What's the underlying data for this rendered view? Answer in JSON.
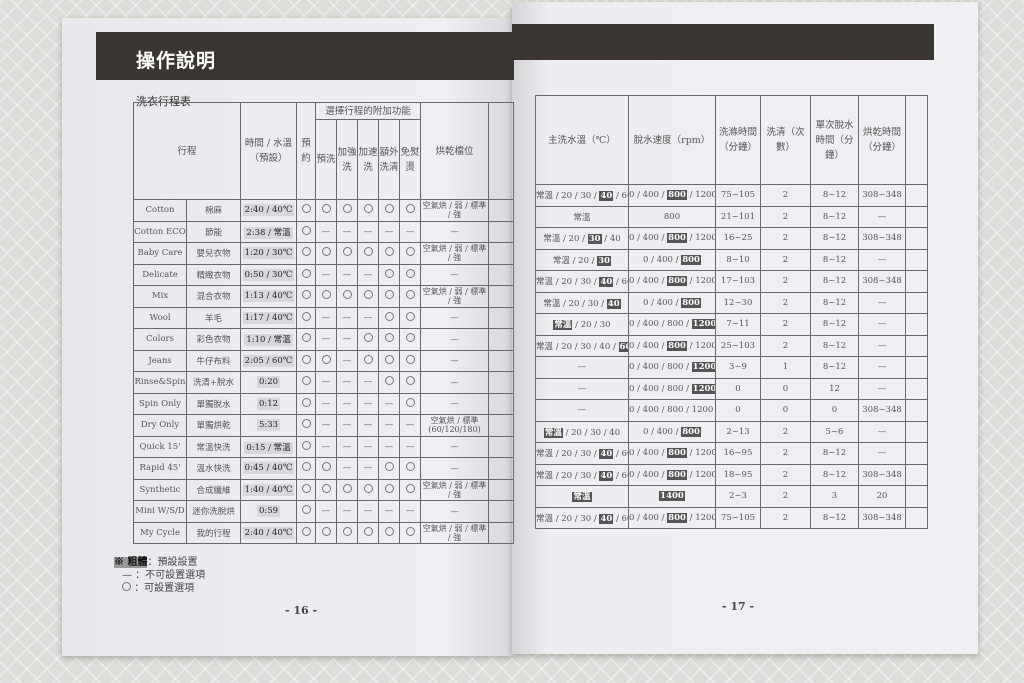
{
  "left_page": {
    "title": "操作說明",
    "subtitle": "洗衣行程表",
    "page_number": "- 16 -",
    "headers": {
      "program": "行程",
      "time_temp": "時間 / 水溫（預設）",
      "options_group": "選擇行程的附加功能",
      "options": [
        "預約",
        "預洗",
        "加強洗",
        "加速洗",
        "額外洗清",
        "免熨燙"
      ],
      "dry_level": "烘乾檔位"
    },
    "rows": [
      {
        "en": "Cotton",
        "zh": "棉麻",
        "time": "2:40 / 40℃",
        "opts": "OOOOOO",
        "dry": "空氣烘 / 弱 / 標準 / 強"
      },
      {
        "en": "Cotton ECO",
        "zh": "節能",
        "time": "2:38 / 常溫",
        "opts": "O-----",
        "dry": "—"
      },
      {
        "en": "Baby Care",
        "zh": "嬰兒衣物",
        "time": "1:20 / 30℃",
        "opts": "OOOOOO",
        "dry": "空氣烘 / 弱 / 標準 / 強"
      },
      {
        "en": "Delicate",
        "zh": "精緻衣物",
        "time": "0:50 / 30℃",
        "opts": "O---OO",
        "dry": "—"
      },
      {
        "en": "Mix",
        "zh": "混合衣物",
        "time": "1:13 / 40℃",
        "opts": "OOOOOO",
        "dry": "空氣烘 / 弱 / 標準 / 強"
      },
      {
        "en": "Wool",
        "zh": "羊毛",
        "time": "1:17 / 40℃",
        "opts": "O---OO",
        "dry": "—"
      },
      {
        "en": "Colors",
        "zh": "彩色衣物",
        "time": "1:10 / 常溫",
        "opts": "O--OOO",
        "dry": "—"
      },
      {
        "en": "Jeans",
        "zh": "牛仔布料",
        "time": "2:05 / 60℃",
        "opts": "OO-OOO",
        "dry": "—"
      },
      {
        "en": "Rinse&Spin",
        "zh": "洗清+脫水",
        "time": "0:20",
        "opts": "O---OO",
        "dry": "—"
      },
      {
        "en": "Spin Only",
        "zh": "單獨脫水",
        "time": "0:12",
        "opts": "O----O",
        "dry": "—"
      },
      {
        "en": "Dry Only",
        "zh": "單獨烘乾",
        "time": "5:33",
        "opts": "O-----",
        "dry": "空氣烘 / 標準(60/120/180)"
      },
      {
        "en": "Quick 15'",
        "zh": "常溫快洗",
        "time": "0:15 / 常溫",
        "opts": "O-----",
        "dry": "—"
      },
      {
        "en": "Rapid 45'",
        "zh": "溫水快洗",
        "time": "0:45 / 40℃",
        "opts": "OO--OO",
        "dry": "—"
      },
      {
        "en": "Synthetic",
        "zh": "合成纖維",
        "time": "1:40 / 40℃",
        "opts": "OOOOOO",
        "dry": "空氣烘 / 弱 / 標準 / 強"
      },
      {
        "en": "Mini W/S/D",
        "zh": "迷你洗脫烘",
        "time": "0:59",
        "opts": "O-----",
        "dry": "—"
      },
      {
        "en": "My Cycle",
        "zh": "我的行程",
        "time": "2:40 / 40℃",
        "opts": "OOOOOO",
        "dry": "空氣烘 / 弱 / 標準 / 強"
      }
    ],
    "legend": {
      "bold_key": "※ 粗體",
      "bold_text": "：預設設置",
      "dash_text": "—  ：不可設置選項",
      "circle_text": "：可設置選項"
    }
  },
  "right_page": {
    "page_number": "- 17 -",
    "headers": {
      "temp": "主洗水溫（℃）",
      "rpm": "脫水速度（rpm）",
      "wash_time": "洗滌時間（分鐘）",
      "rinse": "洗清（次數）",
      "spin_time": "單次脫水時間（分鐘）",
      "dry_time": "烘乾時間（分鐘）"
    },
    "rows": [
      {
        "temp": "常溫 / 20 / 30 / [40] / 60 / 90",
        "rpm": "0 / 400 / [800] / 1200 / 1400",
        "wash": "75~105",
        "rinse": "2",
        "spin": "8~12",
        "dry": "308~348"
      },
      {
        "temp": "常溫",
        "rpm": "800",
        "wash": "21~101",
        "rinse": "2",
        "spin": "8~12",
        "dry": "—"
      },
      {
        "temp": "常溫 / 20 / [30] / 40",
        "rpm": "0 / 400 / [800] / 1200",
        "wash": "16~25",
        "rinse": "2",
        "spin": "8~12",
        "dry": "308~348"
      },
      {
        "temp": "常溫 / 20 / [30]",
        "rpm": "0 / 400 / [800]",
        "wash": "8~10",
        "rinse": "2",
        "spin": "8~12",
        "dry": "—"
      },
      {
        "temp": "常溫 / 20 / 30 / [40] / 60 / 90",
        "rpm": "0 / 400 / [800] / 1200 / 1400",
        "wash": "17~103",
        "rinse": "2",
        "spin": "8~12",
        "dry": "308~348"
      },
      {
        "temp": "常溫 / 20 / 30 / [40]",
        "rpm": "0 / 400 / [800]",
        "wash": "12~30",
        "rinse": "2",
        "spin": "8~12",
        "dry": "—"
      },
      {
        "temp": "[常溫] / 20 / 30",
        "rpm": "0 / 400 / 800 / [1200]",
        "wash": "7~11",
        "rinse": "2",
        "spin": "8~12",
        "dry": "—"
      },
      {
        "temp": "常溫 / 20 / 30 / 40 / [60] / 90",
        "rpm": "0 / 400 / [800] / 1200",
        "wash": "25~103",
        "rinse": "2",
        "spin": "8~12",
        "dry": "—"
      },
      {
        "temp": "—",
        "rpm": "0 / 400 / 800 / [1200] / 1400",
        "wash": "3~9",
        "rinse": "1",
        "spin": "8~12",
        "dry": "—"
      },
      {
        "temp": "—",
        "rpm": "0 / 400 / 800 / [1200] / 1400",
        "wash": "0",
        "rinse": "0",
        "spin": "12",
        "dry": "—"
      },
      {
        "temp": "—",
        "rpm": "0 / 400 / 800 / 1200 / [1400]",
        "wash": "0",
        "rinse": "0",
        "spin": "0",
        "dry": "308~348"
      },
      {
        "temp": "[常溫] / 20 / 30 / 40",
        "rpm": "0 / 400 / [800]",
        "wash": "2~13",
        "rinse": "2",
        "spin": "5~6",
        "dry": "—"
      },
      {
        "temp": "常溫 / 20 / 30 / [40] / 60",
        "rpm": "0 / 400 / [800] / 1200 / 1400",
        "wash": "16~95",
        "rinse": "2",
        "spin": "8~12",
        "dry": "—"
      },
      {
        "temp": "常溫 / 20 / 30 / [40] / 60",
        "rpm": "0 / 400 / [800] / 1200",
        "wash": "18~95",
        "rinse": "2",
        "spin": "8~12",
        "dry": "308~348"
      },
      {
        "temp": "[常溫]",
        "rpm": "[1400]",
        "wash": "2~3",
        "rinse": "2",
        "spin": "3",
        "dry": "20"
      },
      {
        "temp": "常溫 / 20 / 30 / [40] / 60 / 90",
        "rpm": "0 / 400 / [800] / 1200 / 1400",
        "wash": "75~105",
        "rinse": "2",
        "spin": "8~12",
        "dry": "308~348"
      }
    ]
  }
}
